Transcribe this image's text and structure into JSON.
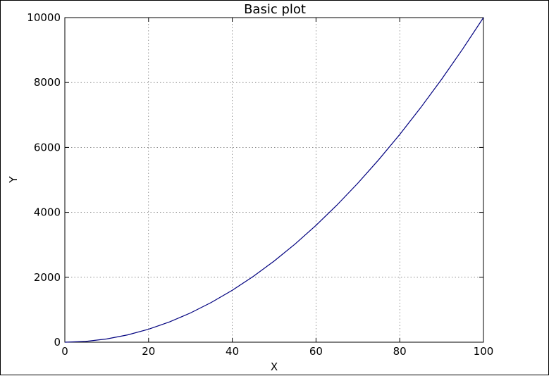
{
  "chart_data": {
    "type": "line",
    "title": "Basic plot",
    "xlabel": "X",
    "ylabel": "Y",
    "xlim": [
      0,
      100
    ],
    "ylim": [
      0,
      10000
    ],
    "x_ticks": [
      0,
      20,
      40,
      60,
      80,
      100
    ],
    "y_ticks": [
      0,
      2000,
      4000,
      6000,
      8000,
      10000
    ],
    "x_tick_labels": [
      "0",
      "20",
      "40",
      "60",
      "80",
      "100"
    ],
    "y_tick_labels": [
      "0",
      "2000",
      "4000",
      "6000",
      "8000",
      "10000"
    ],
    "grid": true,
    "grid_style": "dotted",
    "series": [
      {
        "color": "#00007f",
        "x": [
          0,
          5,
          10,
          15,
          20,
          25,
          30,
          35,
          40,
          45,
          50,
          55,
          60,
          65,
          70,
          75,
          80,
          85,
          90,
          95,
          100
        ],
        "y": [
          0,
          25,
          100,
          225,
          400,
          625,
          900,
          1225,
          1600,
          2025,
          2500,
          3025,
          3600,
          4225,
          4900,
          5625,
          6400,
          7225,
          8100,
          9025,
          10000
        ]
      }
    ]
  }
}
